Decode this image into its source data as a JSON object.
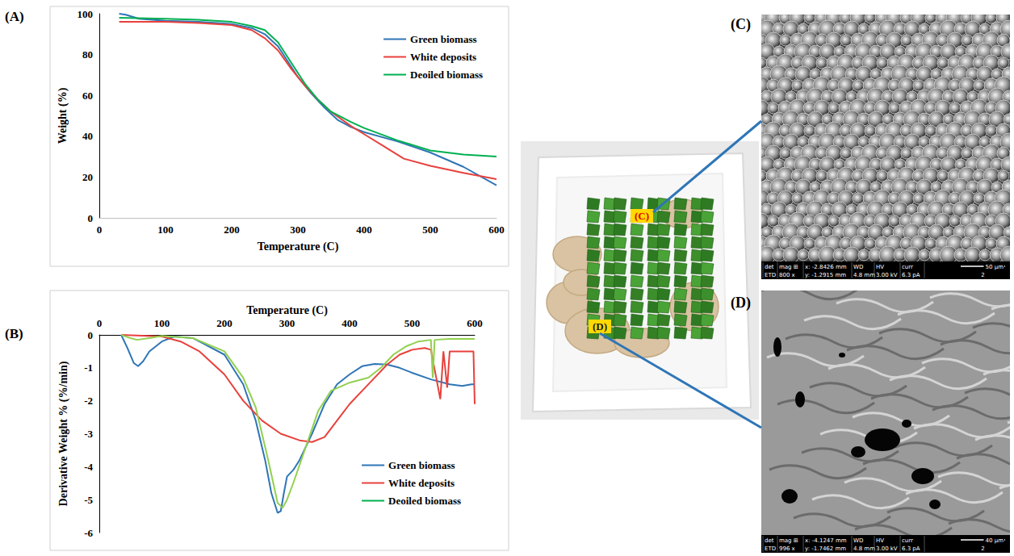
{
  "chart_data": [
    {
      "label": "(A)",
      "type": "line",
      "x_label": "Temperature (C)",
      "y_label": "Weight (%)",
      "xlim": [
        0,
        600
      ],
      "xticks": [
        0,
        100,
        200,
        300,
        400,
        500,
        600
      ],
      "ylim": [
        0,
        100
      ],
      "yticks": [
        0,
        20,
        40,
        60,
        80,
        100
      ],
      "grid": false,
      "legend": "upper right",
      "series": [
        {
          "name": "Green biomass",
          "color": "#2e75b6",
          "x": [
            30,
            40,
            60,
            100,
            150,
            200,
            230,
            250,
            270,
            290,
            300,
            320,
            340,
            360,
            380,
            400,
            450,
            500,
            550,
            600
          ],
          "values": [
            100,
            99.5,
            97.5,
            96.5,
            96,
            95,
            93,
            90,
            84,
            74,
            69,
            61,
            54,
            48,
            44.5,
            42,
            37.5,
            32,
            25,
            16
          ]
        },
        {
          "name": "White deposits",
          "color": "#e8413c",
          "x": [
            30,
            100,
            150,
            200,
            230,
            250,
            270,
            290,
            310,
            330,
            350,
            380,
            400,
            430,
            460,
            500,
            550,
            600
          ],
          "values": [
            96,
            96,
            95.5,
            94.5,
            92,
            88,
            82,
            73,
            65,
            58,
            52,
            45,
            41,
            35,
            29,
            25.5,
            22,
            19
          ]
        },
        {
          "name": "Deoiled biomass",
          "color": "#00b050",
          "x": [
            30,
            100,
            150,
            200,
            230,
            250,
            270,
            290,
            310,
            330,
            350,
            380,
            400,
            450,
            500,
            550,
            600
          ],
          "values": [
            98,
            97.5,
            97,
            96,
            94,
            92,
            86,
            76,
            66,
            58,
            52,
            47,
            44,
            38,
            33,
            31,
            30
          ]
        }
      ]
    },
    {
      "label": "(B)",
      "type": "line",
      "x_label": "Temperature (C)",
      "y_label": "Derivative Weight % (%/min)",
      "xlim": [
        0,
        600
      ],
      "xticks": [
        0,
        100,
        200,
        300,
        400,
        500,
        600
      ],
      "ylim": [
        -6,
        0
      ],
      "yticks": [
        -6,
        -5,
        -4,
        -3,
        -2,
        -1,
        0
      ],
      "grid": false,
      "legend": "lower right",
      "series": [
        {
          "name": "Green biomass",
          "color": "#2e75b6",
          "x": [
            35,
            45,
            55,
            62,
            70,
            80,
            100,
            120,
            150,
            200,
            230,
            250,
            265,
            275,
            285,
            290,
            295,
            300,
            310,
            320,
            340,
            360,
            380,
            400,
            420,
            440,
            460,
            480,
            500,
            530,
            560,
            580,
            595,
            600
          ],
          "values": [
            0,
            -0.4,
            -0.85,
            -0.95,
            -0.8,
            -0.5,
            -0.2,
            -0.05,
            -0.1,
            -0.6,
            -1.5,
            -2.6,
            -3.8,
            -4.8,
            -5.4,
            -5.35,
            -4.8,
            -4.3,
            -4.1,
            -3.8,
            -3.0,
            -2.1,
            -1.5,
            -1.2,
            -0.95,
            -0.88,
            -0.9,
            -1.0,
            -1.15,
            -1.35,
            -1.5,
            -1.55,
            -1.5,
            -1.5
          ]
        },
        {
          "name": "White deposits",
          "color": "#e8413c",
          "x": [
            35,
            60,
            100,
            130,
            160,
            200,
            230,
            260,
            290,
            320,
            340,
            360,
            380,
            400,
            420,
            440,
            460,
            480,
            500,
            520,
            530,
            545,
            550,
            556,
            560,
            580,
            598,
            600
          ],
          "values": [
            0,
            -0.02,
            -0.05,
            -0.2,
            -0.5,
            -1.2,
            -2.0,
            -2.6,
            -3.0,
            -3.2,
            -3.25,
            -3.1,
            -2.6,
            -2.1,
            -1.7,
            -1.3,
            -0.9,
            -0.6,
            -0.45,
            -0.4,
            -0.45,
            -1.95,
            -0.5,
            -1.6,
            -0.5,
            -0.5,
            -0.5,
            -2.1
          ]
        },
        {
          "name": "Deoiled biomass",
          "color": "#92d050",
          "x": [
            35,
            50,
            60,
            80,
            100,
            150,
            200,
            230,
            250,
            270,
            285,
            293,
            300,
            310,
            330,
            350,
            370,
            400,
            430,
            450,
            470,
            490,
            510,
            530,
            533,
            536,
            560,
            600
          ],
          "values": [
            0,
            -0.1,
            -0.15,
            -0.1,
            -0.03,
            -0.1,
            -0.5,
            -1.3,
            -2.2,
            -3.8,
            -5.1,
            -5.25,
            -5.0,
            -4.5,
            -3.4,
            -2.3,
            -1.7,
            -1.45,
            -1.3,
            -1.0,
            -0.6,
            -0.35,
            -0.2,
            -0.15,
            -1.3,
            -0.15,
            -0.12,
            -0.12
          ]
        }
      ]
    }
  ],
  "photo": {
    "markers": [
      "(C)",
      "(D)"
    ]
  },
  "sem_images": [
    {
      "label": "(C)",
      "info_header": [
        "det",
        "mag ⊞",
        "x: -2.8426 mm",
        "WD",
        "HV",
        "curr"
      ],
      "info_values": [
        "ETD",
        "800 x",
        "y: -1.2915 mm",
        "4.8 mm",
        "3.00 kV",
        "6.3 pA"
      ],
      "scale_bar": "50 µm",
      "scale_number": "2"
    },
    {
      "label": "(D)",
      "info_header": [
        "det",
        "mag ⊞",
        "x: -4.1247 mm",
        "WD",
        "HV",
        "curr"
      ],
      "info_values": [
        "ETD",
        "996 x",
        "y: -1.7462 mm",
        "4.8 mm",
        "3.00 kV",
        "6.3 pA"
      ],
      "scale_bar": "40 µm",
      "scale_number": "2"
    }
  ]
}
